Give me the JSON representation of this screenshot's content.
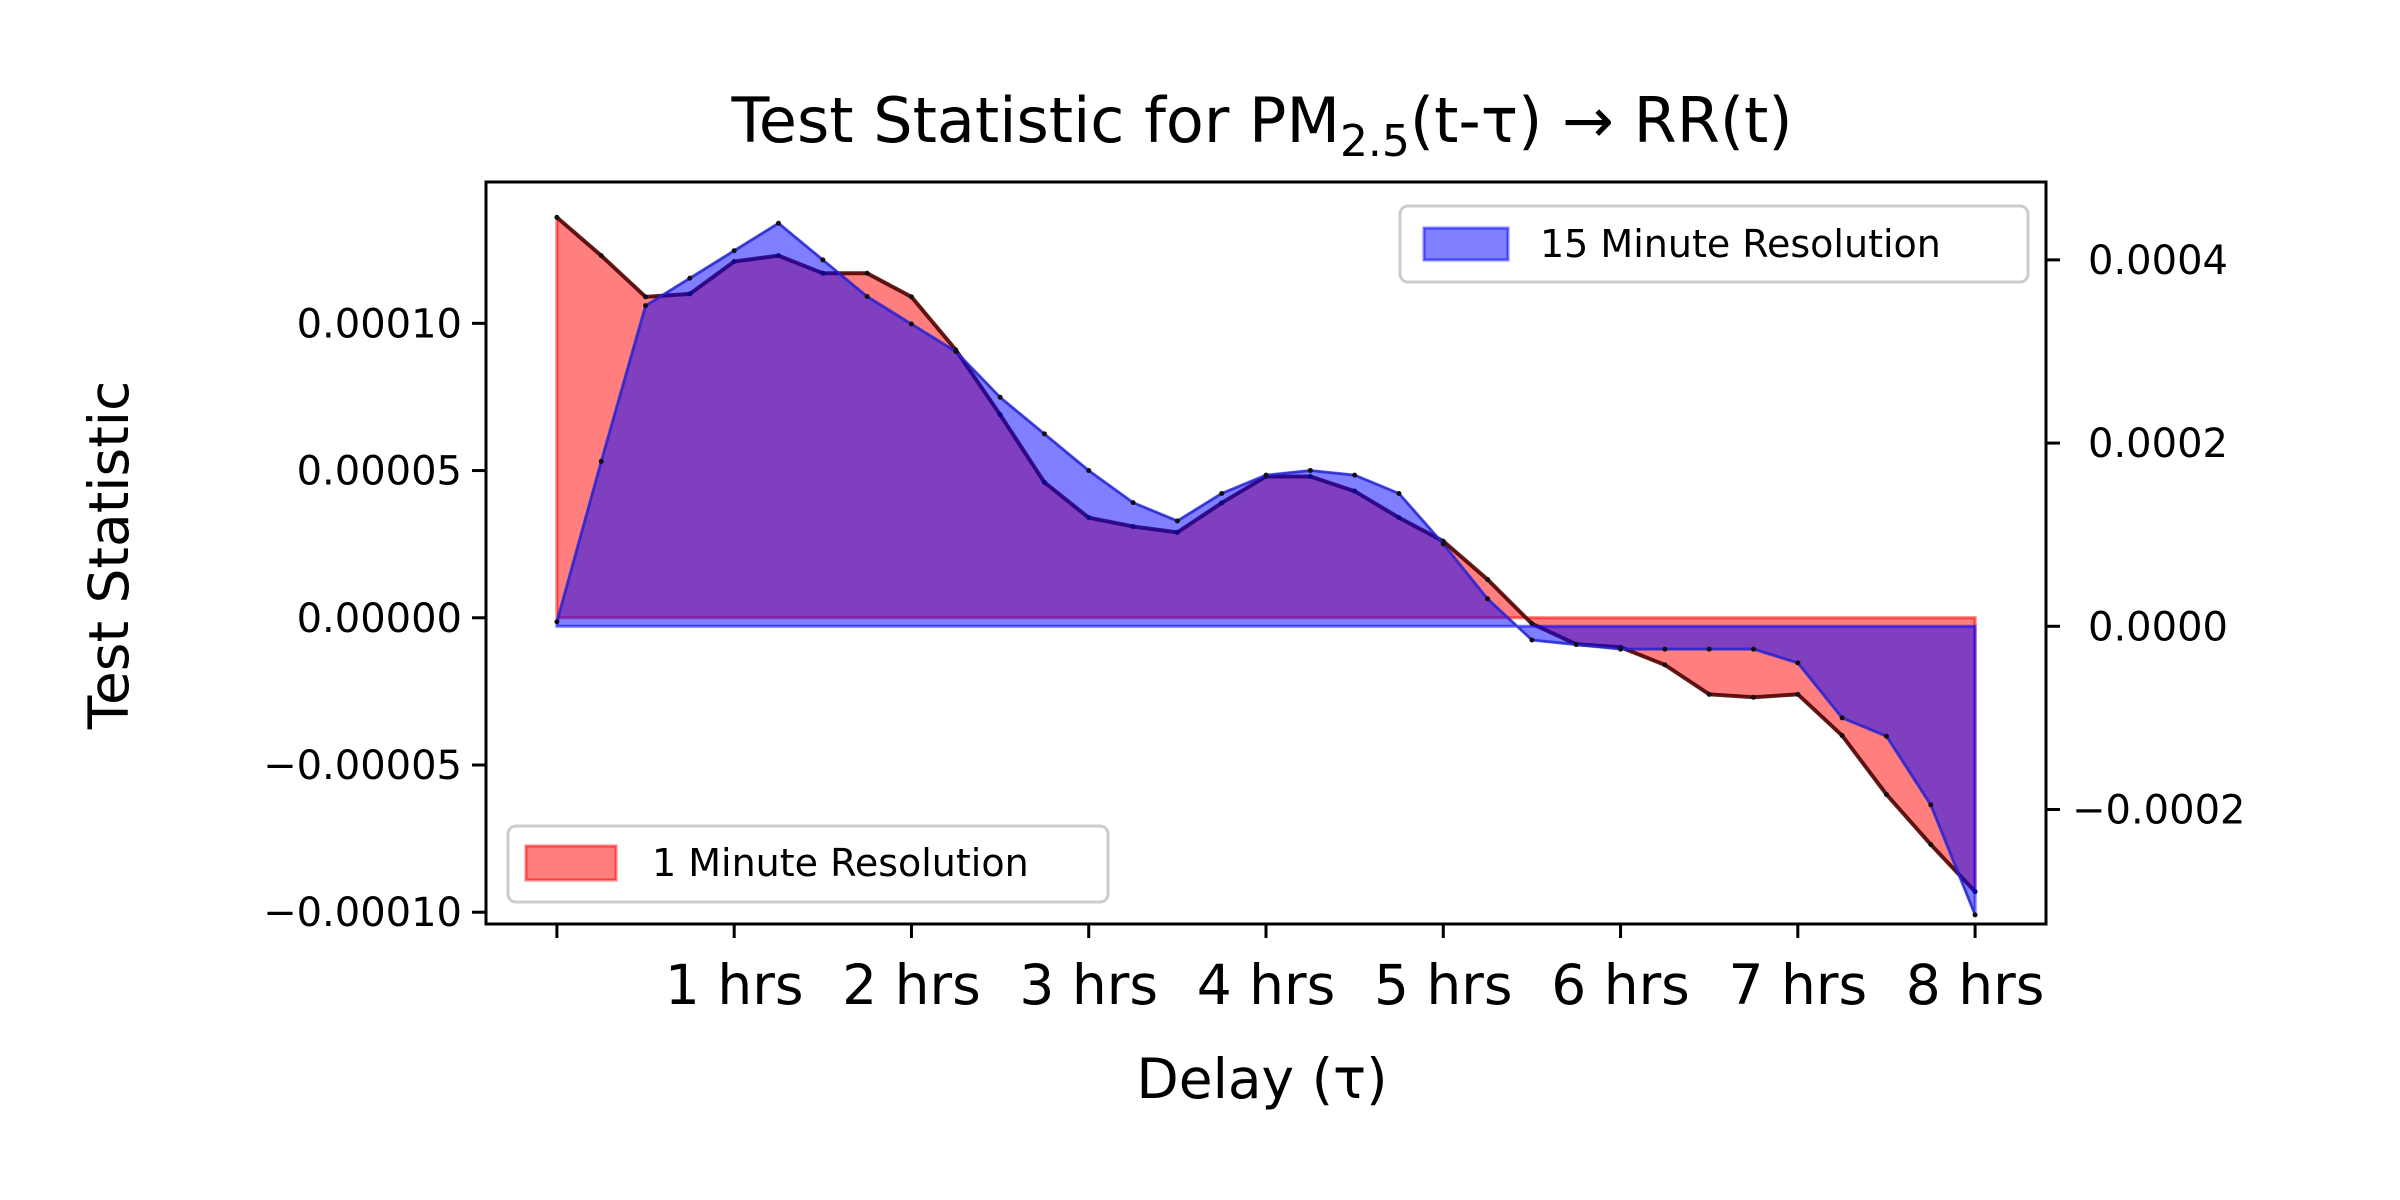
{
  "chart_data": {
    "type": "area",
    "title": {
      "prefix": "Test Statistic for PM",
      "subscript": "2.5",
      "suffix": "(t-τ) → RR(t)"
    },
    "xlabel": "Delay (τ)",
    "ylabel": "Test Statistic",
    "x_range_hours": [
      -0.4,
      8.4
    ],
    "x_ticks": [
      {
        "value": 0,
        "label": ""
      },
      {
        "value": 1,
        "label": "1 hrs"
      },
      {
        "value": 2,
        "label": "2 hrs"
      },
      {
        "value": 3,
        "label": "3 hrs"
      },
      {
        "value": 4,
        "label": "4 hrs"
      },
      {
        "value": 5,
        "label": "5 hrs"
      },
      {
        "value": 6,
        "label": "6 hrs"
      },
      {
        "value": 7,
        "label": "7 hrs"
      },
      {
        "value": 8,
        "label": "8 hrs"
      }
    ],
    "y_left": {
      "range": [
        -0.000104,
        0.000148
      ],
      "ticks": [
        {
          "value": 0.0001,
          "label": "0.00010"
        },
        {
          "value": 5e-05,
          "label": "0.00005"
        },
        {
          "value": 0,
          "label": "0.00000"
        },
        {
          "value": -5e-05,
          "label": "−0.00005"
        },
        {
          "value": -0.0001,
          "label": "−0.00010"
        }
      ]
    },
    "y_right": {
      "range": [
        -0.000325,
        0.000485
      ],
      "ticks": [
        {
          "value": 0.0004,
          "label": "0.0004"
        },
        {
          "value": 0.0002,
          "label": "0.0002"
        },
        {
          "value": 0,
          "label": "0.0000"
        },
        {
          "value": -0.0002,
          "label": "−0.0002"
        }
      ]
    },
    "series": [
      {
        "name": "1 Minute Resolution",
        "axis": "left",
        "color": "#ff0000",
        "fill_opacity": 0.5,
        "x_hours": [
          0,
          0.25,
          0.5,
          0.75,
          1.0,
          1.25,
          1.5,
          1.75,
          2.0,
          2.25,
          2.5,
          2.75,
          3.0,
          3.25,
          3.5,
          3.75,
          4.0,
          4.25,
          4.5,
          4.75,
          5.0,
          5.25,
          5.5,
          5.75,
          6.0,
          6.25,
          6.5,
          6.75,
          7.0,
          7.25,
          7.5,
          7.75,
          8.0
        ],
        "values": [
          0.000136,
          0.000123,
          0.000109,
          0.00011,
          0.000121,
          0.000123,
          0.000117,
          0.000117,
          0.000109,
          9.1e-05,
          6.9e-05,
          4.6e-05,
          3.4e-05,
          3.1e-05,
          2.9e-05,
          3.9e-05,
          4.8e-05,
          4.8e-05,
          4.3e-05,
          3.4e-05,
          2.6e-05,
          1.3e-05,
          -2e-06,
          -9e-06,
          -1e-05,
          -1.6e-05,
          -2.6e-05,
          -2.7e-05,
          -2.6e-05,
          -4e-05,
          -6e-05,
          -7.7e-05,
          -9.3e-05
        ]
      },
      {
        "name": "15 Minute Resolution",
        "axis": "right",
        "color": "#0000ff",
        "fill_opacity": 0.5,
        "x_hours": [
          0,
          0.25,
          0.5,
          0.75,
          1.0,
          1.25,
          1.5,
          1.75,
          2.0,
          2.25,
          2.5,
          2.75,
          3.0,
          3.25,
          3.5,
          3.75,
          4.0,
          4.25,
          4.5,
          4.75,
          5.0,
          5.25,
          5.5,
          5.75,
          6.0,
          6.25,
          6.5,
          6.75,
          7.0,
          7.25,
          7.5,
          7.75,
          8.0
        ],
        "values": [
          5e-06,
          0.00018,
          0.00035,
          0.00038,
          0.00041,
          0.00044,
          0.0004,
          0.00036,
          0.00033,
          0.0003,
          0.00025,
          0.00021,
          0.00017,
          0.000135,
          0.000115,
          0.000145,
          0.000165,
          0.00017,
          0.000165,
          0.000145,
          9e-05,
          3e-05,
          -1.5e-05,
          -2e-05,
          -2.5e-05,
          -2.5e-05,
          -2.5e-05,
          -2.5e-05,
          -4e-05,
          -0.0001,
          -0.00012,
          -0.000195,
          -0.000315
        ]
      }
    ],
    "legends": [
      {
        "series": "15 Minute Resolution",
        "placement": "upper right"
      },
      {
        "series": "1 Minute Resolution",
        "placement": "lower left"
      }
    ]
  }
}
